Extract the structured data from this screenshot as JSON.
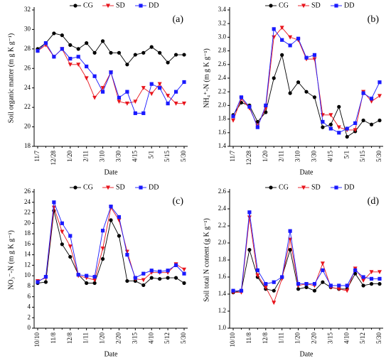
{
  "chart_data": [
    {
      "type": "line",
      "annotation": "(a)",
      "x_label": "Date",
      "y_label": "Soil organic matter (m g K g⁻¹)",
      "categories": [
        "11/7",
        null,
        "12/28",
        null,
        "1/20",
        null,
        "2/11",
        null,
        "3/10",
        null,
        "3/30",
        null,
        "4/15",
        null,
        "5/1",
        null,
        "5/15",
        null,
        "5/30"
      ],
      "ylim": [
        18,
        32
      ],
      "yticks": [
        18,
        20,
        22,
        24,
        26,
        28,
        30,
        32
      ],
      "series": [
        {
          "name": "CG",
          "color": "#000000",
          "marker": "circle",
          "values": [
            28,
            28.6,
            29.6,
            29.4,
            28.4,
            28.0,
            28.6,
            27.6,
            28.8,
            27.6,
            27.6,
            26.4,
            27.4,
            27.6,
            28.2,
            27.6,
            26.6,
            27.4,
            27.4
          ]
        },
        {
          "name": "SD",
          "color": "#e8141c",
          "marker": "triangle-down",
          "values": [
            27.8,
            28.4,
            27.2,
            28.0,
            26.4,
            26.4,
            25.0,
            23.0,
            24.0,
            25.6,
            22.6,
            22.4,
            22.6,
            24.0,
            23.4,
            24.4,
            23.2,
            22.4,
            22.4
          ]
        },
        {
          "name": "DD",
          "color": "#1a1aff",
          "marker": "square",
          "values": [
            27.8,
            28.6,
            27.2,
            28.0,
            27.0,
            27.2,
            26.2,
            25.2,
            23.6,
            25.6,
            23.0,
            23.6,
            21.4,
            21.4,
            24.4,
            24.0,
            22.4,
            23.6,
            24.6
          ]
        }
      ]
    },
    {
      "type": "line",
      "annotation": "(b)",
      "x_label": "Date",
      "y_label": "NH₄⁺-N (m g K g⁻¹)",
      "categories": [
        "11/7",
        null,
        "12/28",
        null,
        "1/20",
        null,
        "2/11",
        null,
        "3/10",
        null,
        "3/30",
        null,
        "4/15",
        null,
        "5/1",
        null,
        "5/15",
        null,
        "5/30"
      ],
      "ylim": [
        1.4,
        3.4
      ],
      "yticks": [
        1.4,
        1.6,
        1.8,
        {
          "value": 2,
          "label": "2.0"
        },
        2.2,
        2.4,
        2.6,
        2.8,
        {
          "value": 3,
          "label": "3.0"
        },
        3.2,
        3.4
      ],
      "series": [
        {
          "name": "CG",
          "color": "#000000",
          "marker": "circle",
          "values": [
            1.86,
            2.04,
            2.0,
            1.76,
            1.9,
            2.4,
            2.74,
            2.18,
            2.34,
            2.2,
            2.12,
            1.68,
            1.72,
            1.98,
            1.54,
            1.62,
            1.78,
            1.72,
            1.78
          ]
        },
        {
          "name": "SD",
          "color": "#e8141c",
          "marker": "triangle-down",
          "values": [
            1.78,
            2.1,
            1.96,
            1.7,
            1.96,
            3.0,
            3.14,
            3.0,
            2.96,
            2.68,
            2.68,
            1.86,
            1.86,
            1.68,
            1.64,
            1.64,
            2.2,
            2.06,
            2.14
          ]
        },
        {
          "name": "DD",
          "color": "#1a1aff",
          "marker": "square",
          "values": [
            1.84,
            2.12,
            1.98,
            1.68,
            2.0,
            3.12,
            2.96,
            2.88,
            2.98,
            2.7,
            2.74,
            1.76,
            1.66,
            1.6,
            1.66,
            1.74,
            2.18,
            2.1,
            2.34
          ]
        }
      ]
    },
    {
      "type": "line",
      "annotation": "(c)",
      "x_label": "Date",
      "y_label": "NO₃⁻-N (m g K g⁻¹)",
      "categories": [
        "10/10",
        null,
        "11/8",
        null,
        "12/8",
        null,
        "1/11",
        null,
        "1/20",
        null,
        "2/20",
        null,
        "3/15",
        null,
        "4/10",
        null,
        "5/12",
        null,
        "5/30"
      ],
      "ylim": [
        0,
        26
      ],
      "yticks": [
        0,
        2,
        4,
        6,
        8,
        10,
        12,
        14,
        16,
        18,
        20,
        22,
        24,
        26
      ],
      "series": [
        {
          "name": "CG",
          "color": "#000000",
          "marker": "circle",
          "values": [
            8.6,
            8.8,
            22.4,
            16,
            13.6,
            10.2,
            8.6,
            8.6,
            13.2,
            20.6,
            17.6,
            9,
            9,
            8.2,
            9.6,
            9.4,
            9.6,
            9.6,
            8.6
          ]
        },
        {
          "name": "SD",
          "color": "#e8141c",
          "marker": "triangle-down",
          "values": [
            9,
            9.6,
            23,
            18.4,
            15.6,
            10,
            9.6,
            9.2,
            15.2,
            23,
            20.6,
            14.6,
            9.4,
            9.2,
            10.6,
            10.6,
            10.6,
            12.2,
            11.2
          ]
        },
        {
          "name": "DD",
          "color": "#1a1aff",
          "marker": "square",
          "values": [
            8.8,
            9.8,
            24,
            20,
            17.6,
            10.2,
            10,
            9.8,
            18.6,
            23.2,
            21.2,
            14,
            9.6,
            10.4,
            11,
            10.8,
            11,
            12,
            10.4
          ]
        }
      ]
    },
    {
      "type": "line",
      "annotation": "(d)",
      "x_label": "Date",
      "y_label": "Soil total N content (g K g⁻¹)",
      "categories": [
        "10/10",
        null,
        "11/8",
        null,
        "12/8",
        null,
        "1/11",
        null,
        "1/20",
        null,
        "2/20",
        null,
        "3/15",
        null,
        "4/10",
        null,
        "5/12",
        null,
        "5/30"
      ],
      "ylim": [
        1,
        2.6
      ],
      "yticks": [
        {
          "value": 1,
          "label": "1.0"
        },
        1.2,
        1.4,
        1.6,
        1.8,
        {
          "value": 2,
          "label": "2.0"
        },
        2.2,
        2.4,
        2.6
      ],
      "series": [
        {
          "name": "CG",
          "color": "#000000",
          "marker": "circle",
          "values": [
            1.42,
            1.44,
            1.92,
            1.6,
            1.46,
            1.44,
            1.6,
            1.92,
            1.46,
            1.48,
            1.44,
            1.54,
            1.48,
            1.46,
            1.46,
            1.64,
            1.5,
            1.52,
            1.52
          ]
        },
        {
          "name": "SD",
          "color": "#e8141c",
          "marker": "triangle-down",
          "values": [
            1.42,
            1.42,
            2.3,
            1.62,
            1.48,
            1.3,
            1.58,
            2.04,
            1.5,
            1.52,
            1.5,
            1.76,
            1.48,
            1.46,
            1.44,
            1.7,
            1.56,
            1.66,
            1.66
          ]
        },
        {
          "name": "DD",
          "color": "#1a1aff",
          "marker": "square",
          "values": [
            1.44,
            1.44,
            2.36,
            1.68,
            1.52,
            1.54,
            1.6,
            2.14,
            1.52,
            1.52,
            1.52,
            1.68,
            1.5,
            1.5,
            1.5,
            1.68,
            1.6,
            1.58,
            1.58
          ]
        }
      ]
    }
  ]
}
